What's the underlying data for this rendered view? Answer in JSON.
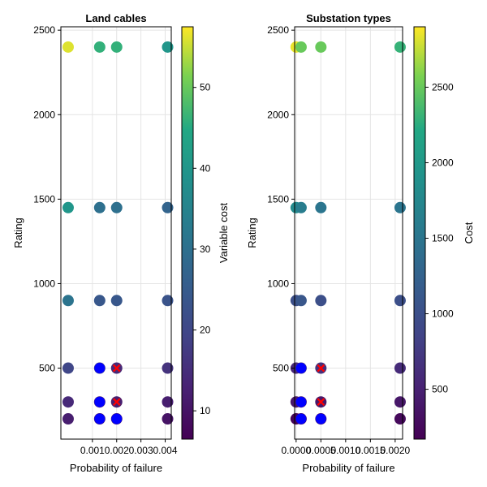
{
  "chart_data": [
    {
      "type": "scatter",
      "title": "Land cables",
      "xlabel": "Probability of failure",
      "ylabel": "Rating",
      "colorbar_label": "Variable cost",
      "colormap": "viridis",
      "xlim": [
        -0.0003,
        0.00425
      ],
      "ylim": [
        80,
        2520
      ],
      "xticks": [
        0.001,
        0.002,
        0.003,
        0.004
      ],
      "xtick_labels": [
        "0.001",
        "0.002",
        "0.003",
        "0.004"
      ],
      "yticks": [
        500,
        1000,
        1500,
        2000,
        2500
      ],
      "ytick_labels": [
        "500",
        "1000",
        "1500",
        "2000",
        "2500"
      ],
      "clim": [
        6.5,
        57.5
      ],
      "cticks": [
        10,
        20,
        30,
        40,
        50
      ],
      "ctick_labels": [
        "10",
        "20",
        "30",
        "40",
        "50"
      ],
      "grid": true,
      "points": [
        {
          "x": 0.0,
          "y": 200,
          "c": 12
        },
        {
          "x": 0.0,
          "y": 300,
          "c": 14
        },
        {
          "x": 0.0,
          "y": 500,
          "c": 20
        },
        {
          "x": 0.0,
          "y": 900,
          "c": 31
        },
        {
          "x": 0.0,
          "y": 1450,
          "c": 40
        },
        {
          "x": 0.0,
          "y": 2400,
          "c": 56
        },
        {
          "x": 0.0013,
          "y": 200,
          "c": 10
        },
        {
          "x": 0.0013,
          "y": 300,
          "c": 12
        },
        {
          "x": 0.0013,
          "y": 500,
          "c": 18
        },
        {
          "x": 0.0013,
          "y": 900,
          "c": 24
        },
        {
          "x": 0.0013,
          "y": 1450,
          "c": 30
        },
        {
          "x": 0.0013,
          "y": 2400,
          "c": 46
        },
        {
          "x": 0.002,
          "y": 200,
          "c": 10
        },
        {
          "x": 0.002,
          "y": 300,
          "c": 12
        },
        {
          "x": 0.002,
          "y": 500,
          "c": 14
        },
        {
          "x": 0.002,
          "y": 900,
          "c": 24
        },
        {
          "x": 0.002,
          "y": 1450,
          "c": 30
        },
        {
          "x": 0.002,
          "y": 2400,
          "c": 46
        },
        {
          "x": 0.0041,
          "y": 200,
          "c": 10
        },
        {
          "x": 0.0041,
          "y": 300,
          "c": 12
        },
        {
          "x": 0.0041,
          "y": 500,
          "c": 16
        },
        {
          "x": 0.0041,
          "y": 900,
          "c": 23
        },
        {
          "x": 0.0041,
          "y": 1450,
          "c": 27
        },
        {
          "x": 0.0041,
          "y": 2400,
          "c": 40
        }
      ],
      "selected": [
        {
          "x": 0.0013,
          "y": 200
        },
        {
          "x": 0.0013,
          "y": 300
        },
        {
          "x": 0.0013,
          "y": 500
        },
        {
          "x": 0.002,
          "y": 200
        }
      ],
      "crossed": [
        {
          "x": 0.002,
          "y": 300
        },
        {
          "x": 0.002,
          "y": 500
        }
      ]
    },
    {
      "type": "scatter",
      "title": "Substation types",
      "xlabel": "Probability of failure",
      "ylabel": "Rating",
      "colorbar_label": "Cost",
      "colormap": "viridis",
      "xlim": [
        -3e-05,
        0.00215
      ],
      "ylim": [
        80,
        2520
      ],
      "xticks": [
        0.0,
        0.0005,
        0.001,
        0.0015,
        0.002
      ],
      "xtick_labels": [
        "0.0000",
        "0.0005",
        "0.0010",
        "0.0015",
        "0.0020"
      ],
      "yticks": [
        500,
        1000,
        1500,
        2000,
        2500
      ],
      "ytick_labels": [
        "500",
        "1000",
        "1500",
        "2000",
        "2500"
      ],
      "clim": [
        170,
        2900
      ],
      "cticks": [
        500,
        1000,
        1500,
        2000,
        2500
      ],
      "ctick_labels": [
        "500",
        "1000",
        "1500",
        "2000",
        "2500"
      ],
      "grid": true,
      "points": [
        {
          "x": 0.0,
          "y": 200,
          "c": 200
        },
        {
          "x": 0.0,
          "y": 300,
          "c": 400
        },
        {
          "x": 0.0,
          "y": 500,
          "c": 550
        },
        {
          "x": 0.0,
          "y": 900,
          "c": 1000
        },
        {
          "x": 0.0,
          "y": 1450,
          "c": 1800
        },
        {
          "x": 0.0,
          "y": 2400,
          "c": 2850
        },
        {
          "x": 0.0001,
          "y": 200,
          "c": 250
        },
        {
          "x": 0.0001,
          "y": 300,
          "c": 400
        },
        {
          "x": 0.0001,
          "y": 500,
          "c": 700
        },
        {
          "x": 0.0001,
          "y": 900,
          "c": 1100
        },
        {
          "x": 0.0001,
          "y": 1450,
          "c": 1600
        },
        {
          "x": 0.0001,
          "y": 2400,
          "c": 2500
        },
        {
          "x": 0.0005,
          "y": 200,
          "c": 250
        },
        {
          "x": 0.0005,
          "y": 300,
          "c": 400
        },
        {
          "x": 0.0005,
          "y": 500,
          "c": 650
        },
        {
          "x": 0.0005,
          "y": 900,
          "c": 1000
        },
        {
          "x": 0.0005,
          "y": 1450,
          "c": 1500
        },
        {
          "x": 0.0005,
          "y": 2400,
          "c": 2500
        },
        {
          "x": 0.0021,
          "y": 200,
          "c": 250
        },
        {
          "x": 0.0021,
          "y": 300,
          "c": 400
        },
        {
          "x": 0.0021,
          "y": 500,
          "c": 600
        },
        {
          "x": 0.0021,
          "y": 900,
          "c": 1000
        },
        {
          "x": 0.0021,
          "y": 1450,
          "c": 1500
        },
        {
          "x": 0.0021,
          "y": 2400,
          "c": 2300
        }
      ],
      "selected": [
        {
          "x": 0.0001,
          "y": 200
        },
        {
          "x": 0.0001,
          "y": 300
        },
        {
          "x": 0.0001,
          "y": 500
        },
        {
          "x": 0.0005,
          "y": 200
        }
      ],
      "crossed": [
        {
          "x": 0.0005,
          "y": 300
        },
        {
          "x": 0.0005,
          "y": 500
        }
      ]
    }
  ],
  "colors": {
    "selected_marker": "#0000ff",
    "cross_marker": "#ff0000"
  }
}
